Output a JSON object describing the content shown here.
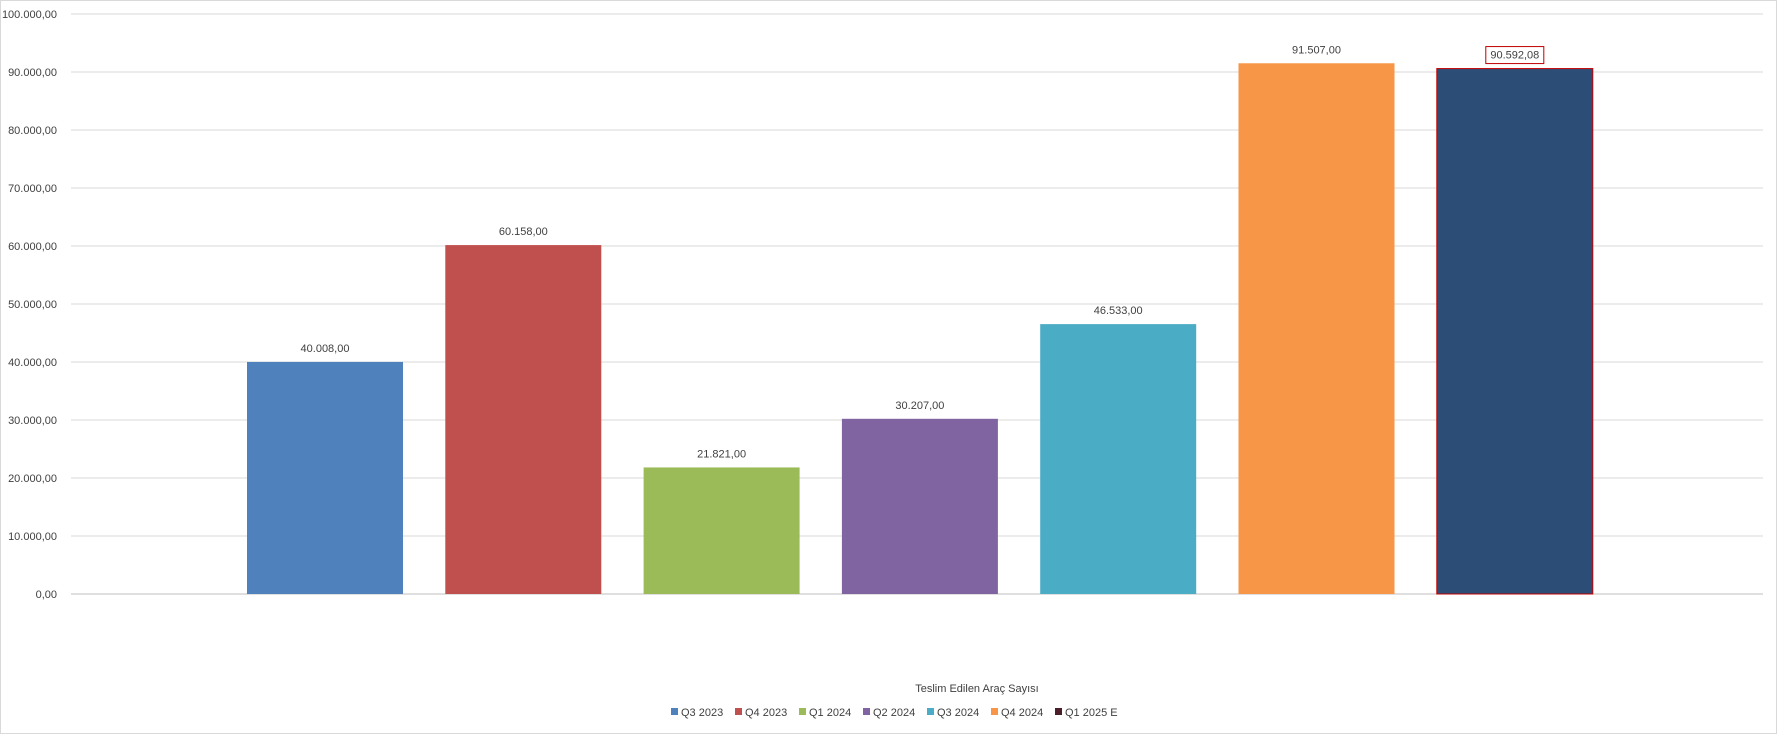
{
  "chart_data": {
    "type": "bar",
    "xlabel": "Teslim Edilen Araç Sayısı",
    "ylim": [
      0,
      100000
    ],
    "ytick_labels": [
      "0,00",
      "10.000,00",
      "20.000,00",
      "30.000,00",
      "40.000,00",
      "50.000,00",
      "60.000,00",
      "70.000,00",
      "80.000,00",
      "90.000,00",
      "100.000,00"
    ],
    "grid": true,
    "legend_position": "bottom",
    "series": [
      {
        "name": "Q3 2023",
        "value": 40008,
        "label": "40.008,00",
        "color": "#4F81BD"
      },
      {
        "name": "Q4 2023",
        "value": 60158,
        "label": "60.158,00",
        "color": "#C0504D"
      },
      {
        "name": "Q1 2024",
        "value": 21821,
        "label": "21.821,00",
        "color": "#9BBB59"
      },
      {
        "name": "Q2 2024",
        "value": 30207,
        "label": "30.207,00",
        "color": "#8064A2"
      },
      {
        "name": "Q3 2024",
        "value": 46533,
        "label": "46.533,00",
        "color": "#4BACC6"
      },
      {
        "name": "Q4 2024",
        "value": 91507,
        "label": "91.507,00",
        "color": "#F79646"
      },
      {
        "name": "Q1 2025 E",
        "value": 90592.08,
        "label": "90.592,08",
        "color": "#2C4D75",
        "border": "#C00000",
        "legend_color": "#4A1F2A",
        "highlighted": true
      }
    ]
  }
}
